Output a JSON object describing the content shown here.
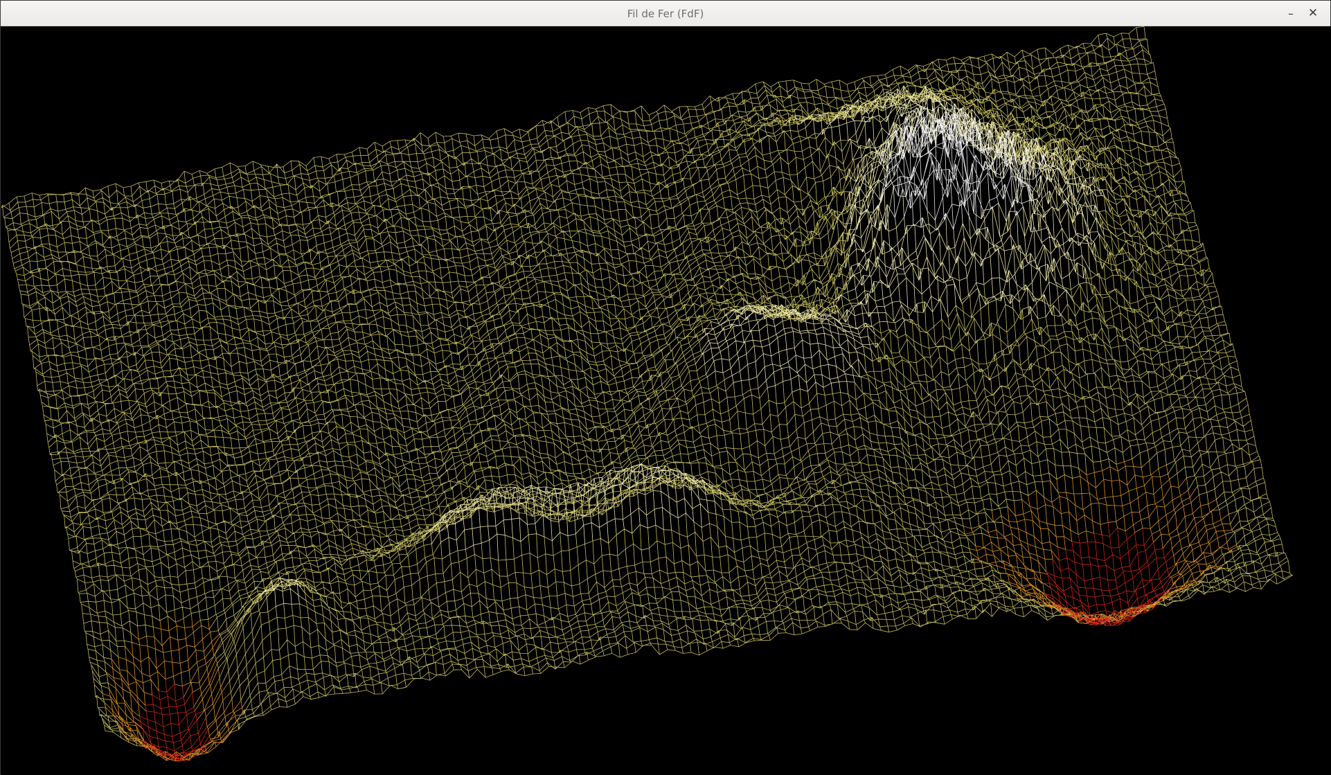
{
  "window": {
    "title": "Fil de Fer (FdF)",
    "minimize_icon": "minimize-icon",
    "close_icon": "close-icon",
    "minimize_glyph": "–",
    "close_glyph": "✕"
  },
  "viewport": {
    "background": "#000000",
    "palette": {
      "low": "#e3261c",
      "mid_low": "#f0a02a",
      "mid": "#d8cf6a",
      "high": "#fff8b8",
      "peak": "#ffffff"
    }
  }
}
